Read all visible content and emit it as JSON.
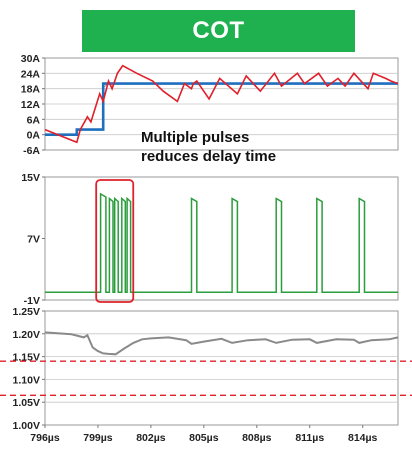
{
  "banner": {
    "title": "COT",
    "color": "#1fb04f"
  },
  "chart_data": [
    {
      "type": "line",
      "title": "",
      "xlabel": "",
      "ylabel": "",
      "xlim": [
        796,
        816
      ],
      "ylim": [
        -6,
        30
      ],
      "y_tick_labels": [
        "30A",
        "24A",
        "18A",
        "12A",
        "6A",
        "0A",
        "-6A"
      ],
      "y_tick_values": [
        30,
        24,
        18,
        12,
        6,
        0,
        -6
      ],
      "annotation": {
        "lines": [
          "Multiple pulses",
          "reduces delay time"
        ]
      },
      "series": [
        {
          "color": "#1f6fbf",
          "x": [
            796.0,
            797.8,
            797.8,
            799.3,
            799.3,
            816.0
          ],
          "y": [
            0,
            0,
            2,
            2,
            20,
            20
          ]
        },
        {
          "color": "#e0202a",
          "x": [
            796.0,
            797.8,
            798.0,
            798.4,
            798.6,
            799.1,
            799.3,
            799.6,
            799.8,
            800.1,
            800.4,
            801.2,
            802.1,
            802.7,
            803.5,
            803.9,
            804.3,
            804.4,
            804.6,
            805.3,
            805.9,
            806.9,
            807.4,
            808.2,
            809.0,
            809.4,
            810.3,
            810.7,
            811.5,
            812.0,
            812.6,
            813.0,
            813.5,
            814.3,
            814.6,
            815.3,
            815.6,
            816.0
          ],
          "y": [
            2,
            -3,
            2,
            7,
            5,
            16,
            13,
            21,
            18,
            24,
            27,
            24,
            21,
            17,
            13,
            20,
            18,
            20,
            21,
            14,
            22,
            16,
            23,
            17,
            24,
            19,
            24,
            20,
            24,
            19,
            22,
            19,
            24,
            18,
            24,
            22,
            21,
            20
          ]
        }
      ]
    },
    {
      "type": "line",
      "title": "",
      "xlabel": "",
      "ylabel": "",
      "xlim": [
        796,
        816
      ],
      "ylim": [
        -1,
        15
      ],
      "y_tick_labels": [
        "15V",
        "7V",
        "-1V"
      ],
      "y_tick_values": [
        15,
        7,
        -1
      ],
      "highlight_box": {
        "x": [
          798.9,
          801.0
        ],
        "color": "#e0202a"
      },
      "series": [
        {
          "color": "#2a9d3c",
          "pulses": [
            {
              "start": 799.15,
              "end": 799.45,
              "high": 12.8
            },
            {
              "start": 799.65,
              "end": 799.85,
              "high": 12.2
            },
            {
              "start": 799.95,
              "end": 800.15,
              "high": 12.2
            },
            {
              "start": 800.35,
              "end": 800.55,
              "high": 12.2
            },
            {
              "start": 800.65,
              "end": 800.85,
              "high": 12.2
            },
            {
              "start": 804.3,
              "end": 804.6,
              "high": 12.2
            },
            {
              "start": 806.6,
              "end": 806.9,
              "high": 12.2
            },
            {
              "start": 809.1,
              "end": 809.4,
              "high": 12.2
            },
            {
              "start": 811.4,
              "end": 811.7,
              "high": 12.2
            },
            {
              "start": 813.8,
              "end": 814.1,
              "high": 12.2
            }
          ],
          "low": 0
        }
      ]
    },
    {
      "type": "line",
      "title": "",
      "xlabel": "",
      "ylabel": "",
      "xlim": [
        796,
        816
      ],
      "ylim": [
        1.0,
        1.25
      ],
      "y_tick_labels": [
        "1.25V",
        "1.20V",
        "1.15V",
        "1.10V",
        "1.05V",
        "1.00V"
      ],
      "y_tick_values": [
        1.25,
        1.2,
        1.15,
        1.1,
        1.05,
        1.0
      ],
      "x_tick_labels": [
        "796µs",
        "799µs",
        "802µs",
        "805µs",
        "808µs",
        "811µs",
        "814µs"
      ],
      "x_tick_values": [
        796,
        799,
        802,
        805,
        808,
        811,
        814
      ],
      "limits": {
        "values": [
          1.14,
          1.065
        ],
        "color": "#e0202a"
      },
      "series": [
        {
          "color": "#8a8a8a",
          "x": [
            796.0,
            797.5,
            798.2,
            798.4,
            798.7,
            799.0,
            799.3,
            799.6,
            800.0,
            800.5,
            801.0,
            801.5,
            802.0,
            803.0,
            804.0,
            804.3,
            805.0,
            806.0,
            806.6,
            807.5,
            808.5,
            809.1,
            810.0,
            811.0,
            811.4,
            812.5,
            813.5,
            813.8,
            814.5,
            815.5,
            816.0
          ],
          "y": [
            1.203,
            1.199,
            1.192,
            1.197,
            1.17,
            1.162,
            1.157,
            1.156,
            1.155,
            1.168,
            1.18,
            1.188,
            1.19,
            1.192,
            1.186,
            1.178,
            1.183,
            1.189,
            1.18,
            1.186,
            1.188,
            1.18,
            1.187,
            1.188,
            1.18,
            1.188,
            1.187,
            1.18,
            1.186,
            1.188,
            1.192
          ]
        }
      ]
    }
  ]
}
